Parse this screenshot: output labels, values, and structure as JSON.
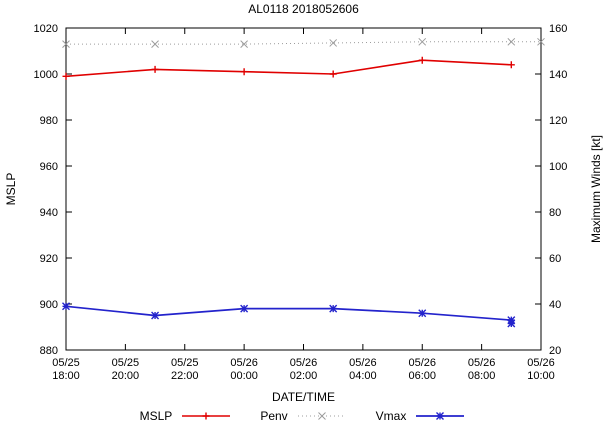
{
  "chart_data": {
    "type": "line",
    "title": "AL0118 2018052606",
    "xlabel": "DATE/TIME",
    "ylabel_left": "MSLP",
    "ylabel_right": "Maximum Winds [kt]",
    "x_range": [
      0,
      16
    ],
    "y_left": {
      "range": [
        880,
        1020
      ],
      "step": 20
    },
    "y_right": {
      "range": [
        20,
        160
      ],
      "step": 20
    },
    "x_ticks": [
      {
        "pos": 0,
        "label": [
          "05/25",
          "18:00"
        ]
      },
      {
        "pos": 2,
        "label": [
          "05/25",
          "20:00"
        ]
      },
      {
        "pos": 4,
        "label": [
          "05/25",
          "22:00"
        ]
      },
      {
        "pos": 6,
        "label": [
          "05/26",
          "00:00"
        ]
      },
      {
        "pos": 8,
        "label": [
          "05/26",
          "02:00"
        ]
      },
      {
        "pos": 10,
        "label": [
          "05/26",
          "04:00"
        ]
      },
      {
        "pos": 12,
        "label": [
          "05/26",
          "06:00"
        ]
      },
      {
        "pos": 14,
        "label": [
          "05/26",
          "08:00"
        ]
      },
      {
        "pos": 16,
        "label": [
          "05/26",
          "10:00"
        ]
      }
    ],
    "series": [
      {
        "name": "MSLP",
        "axis": "left",
        "color": "#e00000",
        "marker": "plus",
        "dash": "",
        "width": 1.6,
        "points": [
          [
            0,
            999
          ],
          [
            3,
            1002
          ],
          [
            6,
            1001
          ],
          [
            9,
            1000
          ],
          [
            12,
            1006
          ],
          [
            15,
            1004
          ]
        ]
      },
      {
        "name": "Penv",
        "axis": "left",
        "color": "#9c9c9c",
        "marker": "cross",
        "dash": "1,3",
        "width": 1,
        "points": [
          [
            0,
            1013
          ],
          [
            3,
            1013
          ],
          [
            6,
            1013
          ],
          [
            9,
            1013.5
          ],
          [
            12,
            1014
          ],
          [
            15,
            1014
          ],
          [
            16,
            1014
          ]
        ]
      },
      {
        "name": "Vmax",
        "axis": "right",
        "color": "#2323cc",
        "marker": "star",
        "dash": "",
        "width": 1.7,
        "points": [
          [
            0,
            39
          ],
          [
            3,
            35
          ],
          [
            6,
            38
          ],
          [
            9,
            38
          ],
          [
            12,
            36
          ],
          [
            15,
            33
          ]
        ]
      }
    ],
    "extra_points": [
      {
        "axis": "right",
        "x": 15,
        "y": 31.5,
        "marker": "star",
        "color": "#2323cc"
      }
    ]
  }
}
